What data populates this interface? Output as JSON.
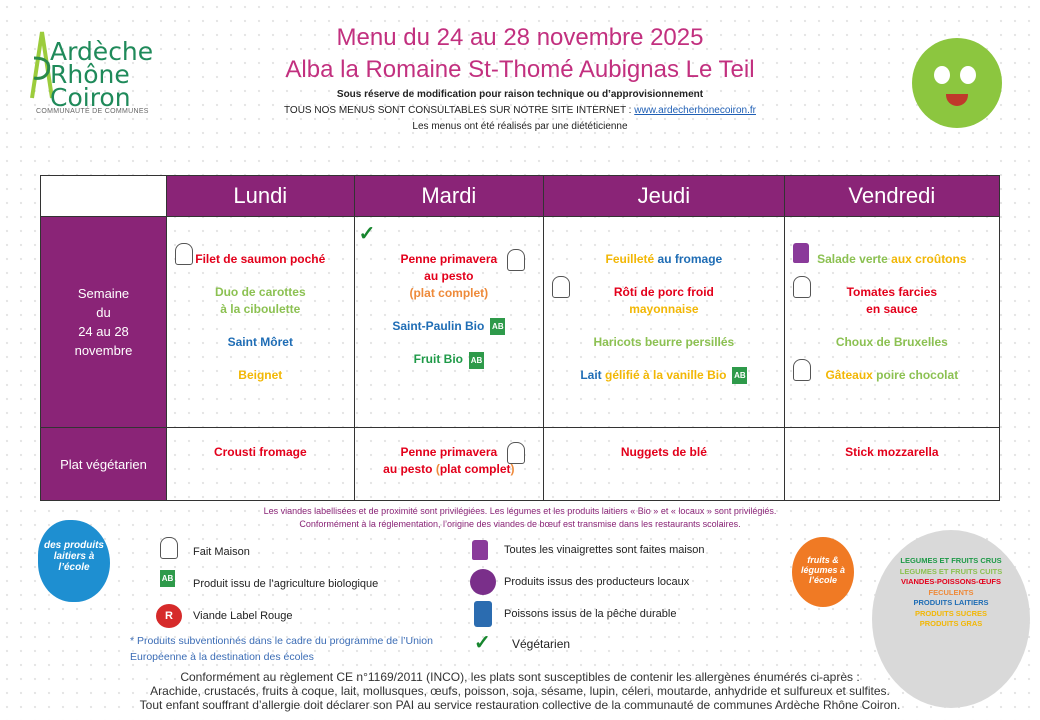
{
  "logo": {
    "line1": "Ardèche",
    "line2": "Rhône",
    "line3": "Coiron",
    "subtitle": "COMMUNAUTÉ DE COMMUNES"
  },
  "header": {
    "title": "Menu du 24 au 28 novembre 2025",
    "subtitle": "Alba la Romaine St-Thomé Aubignas Le Teil",
    "notice1": "Sous réserve de modification pour raison technique ou d’approvisionnement",
    "notice2": "TOUS NOS MENUS SONT CONSULTABLES SUR NOTRE SITE INTERNET : ",
    "website": "www.ardecherhonecoiron.fr",
    "notice3": "Les menus ont été réalisés par une diététicienne"
  },
  "colors": {
    "purple": "#8a2477",
    "red": "#e3001b",
    "lightgreen": "#8cc152",
    "blue": "#1f6db5",
    "yellow": "#f2b705",
    "orange": "#ee8a3a",
    "darkgreen": "#1f9a48"
  },
  "table": {
    "days": [
      "Lundi",
      "Mardi",
      "Jeudi",
      "Vendredi"
    ],
    "week_label": [
      "Semaine",
      "du",
      "24 au 28",
      "novembre"
    ],
    "veg_label": "Plat végétarien",
    "menus": [
      {
        "items": [
          {
            "icon": "chef-hat-icon",
            "segments": [
              {
                "t": "Filet de saumon poché",
                "c": "red"
              }
            ]
          },
          {
            "segments": [
              {
                "t": "Duo de carottes",
                "c": "lightgreen"
              }
            ],
            "line2": [
              {
                "t": "à la ciboulette",
                "c": "lightgreen"
              }
            ]
          },
          {
            "segments": [
              {
                "t": "Saint Môret",
                "c": "blue"
              }
            ]
          },
          {
            "segments": [
              {
                "t": "Beignet",
                "c": "yellow"
              }
            ]
          }
        ]
      },
      {
        "top_icon": "vegetarian-icon",
        "items": [
          {
            "icon_right": "chef-hat-icon",
            "segments": [
              {
                "t": "Penne primavera",
                "c": "red"
              }
            ],
            "line2": [
              {
                "t": "au pesto",
                "c": "red"
              }
            ],
            "line3": [
              {
                "t": "(plat complet)",
                "c": "orange"
              }
            ]
          },
          {
            "icon_right": "organic-ab-icon",
            "segments": [
              {
                "t": "Saint-Paulin Bio",
                "c": "blue"
              }
            ]
          },
          {
            "icon_right": "organic-ab-icon",
            "segments": [
              {
                "t": "Fruit Bio",
                "c": "darkgreen"
              }
            ]
          }
        ]
      },
      {
        "items": [
          {
            "segments": [
              {
                "t": "Feuilleté ",
                "c": "yellow"
              },
              {
                "t": "au fromage",
                "c": "blue"
              }
            ]
          },
          {
            "icon": "chef-hat-icon",
            "segments": [
              {
                "t": "Rôti de porc froid",
                "c": "red"
              }
            ],
            "line2": [
              {
                "t": "mayonnaise",
                "c": "yellow"
              }
            ]
          },
          {
            "segments": [
              {
                "t": "Haricots beurre persillés",
                "c": "lightgreen"
              }
            ]
          },
          {
            "icon_right": "organic-ab-icon",
            "segments": [
              {
                "t": "Lait ",
                "c": "blue"
              },
              {
                "t": "gélifié à la vanille Bio",
                "c": "yellow"
              }
            ]
          }
        ]
      },
      {
        "items": [
          {
            "icon": "vinaigrette-bottle-icon",
            "segments": [
              {
                "t": "Salade verte ",
                "c": "lightgreen"
              },
              {
                "t": "aux croûtons",
                "c": "yellow"
              }
            ]
          },
          {
            "icon": "chef-hat-icon",
            "segments": [
              {
                "t": "Tomates farcies",
                "c": "red"
              }
            ],
            "line2": [
              {
                "t": "en sauce",
                "c": "red"
              }
            ]
          },
          {
            "segments": [
              {
                "t": "Choux de Bruxelles",
                "c": "lightgreen"
              }
            ]
          },
          {
            "icon": "chef-hat-icon",
            "segments": [
              {
                "t": "Gâteaux ",
                "c": "yellow"
              },
              {
                "t": "poire chocolat",
                "c": "lightgreen"
              }
            ]
          }
        ]
      }
    ],
    "veg": [
      {
        "segments": [
          {
            "t": "Crousti fromage",
            "c": "red"
          }
        ]
      },
      {
        "icon_right": "chef-hat-icon",
        "segments": [
          {
            "t": "Penne primavera",
            "c": "red"
          }
        ],
        "line2": [
          {
            "t": "au pesto ",
            "c": "red"
          },
          {
            "t": "(",
            "c": "orange"
          },
          {
            "t": "plat complet",
            "c": "red"
          },
          {
            "t": ")",
            "c": "orange"
          }
        ]
      },
      {
        "segments": [
          {
            "t": "Nuggets de blé",
            "c": "red"
          }
        ]
      },
      {
        "segments": [
          {
            "t": "Stick mozzarella",
            "c": "red"
          }
        ]
      }
    ]
  },
  "notes": {
    "line1": "Les viandes labellisées et de proximité sont privilégiées. Les légumes et les produits laitiers « Bio » et « locaux » sont privilégiés.",
    "line2": "Conformément à la réglementation, l’origine des viandes de bœuf est transmise dans les restaurants scolaires."
  },
  "legend": {
    "fait_maison": "Fait Maison",
    "bio": "Produit issu de l’agriculture biologique",
    "label_rouge": "Viande Label Rouge",
    "vinaigrettes": "Toutes les vinaigrettes sont faites maison",
    "locaux": "Produits issus des producteurs locaux",
    "peche": "Poissons  issus de la pêche durable",
    "vegetarien": "Végétarien",
    "eu1": "* Produits subventionnés dans le cadre du programme de l’Union",
    "eu2": "Européenne à la destination des écoles"
  },
  "badges": {
    "dairy": "des produits laitiers à l’école",
    "fruits": "fruits & légumes à l’école"
  },
  "food_groups": [
    {
      "label": "LEGUMES ET FRUITS CRUS",
      "color": "#1f9a48"
    },
    {
      "label": "LEGUMES ET FRUITS CUITS",
      "color": "#8cc152"
    },
    {
      "label": "VIANDES-POISSONS-ŒUFS",
      "color": "#e3001b"
    },
    {
      "label": "FECULENTS",
      "color": "#ee8a3a"
    },
    {
      "label": "PRODUITS LAITIERS",
      "color": "#1f6db5"
    },
    {
      "label": "PRODUITS SUCRES",
      "color": "#f2b705"
    },
    {
      "label": "PRODUITS GRAS",
      "color": "#f2b705"
    }
  ],
  "allergens": {
    "line1": "Conformément au règlement CE n°1169/2011 (INCO), les plats sont susceptibles de contenir les allergènes énumérés ci-après :",
    "line2": "Arachide, crustacés, fruits à coque, lait, mollusques, œufs, poisson, soja, sésame, lupin, céleri, moutarde, anhydride et sulfureux et sulfites.",
    "line3": "Tout enfant souffrant d’allergie doit déclarer son PAI au service restauration collective de la communauté de communes Ardèche Rhône Coiron."
  }
}
